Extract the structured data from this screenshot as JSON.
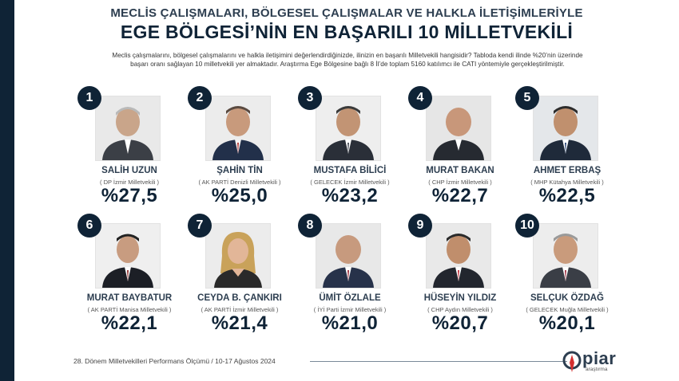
{
  "header": {
    "subtitle": "MECLİS ÇALIŞMALARI, BÖLGESEL ÇALIŞMALAR VE HALKLA İLETİŞİMLERİYLE",
    "title": "EGE BÖLGESİ’NİN EN BAŞARILI 10 MİLLETVEKİLİ",
    "desc_line1": "Meclis çalışmalarını, bölgesel çalışmalarını ve halkla iletişimini değerlendirdiğinizde, ilinizin en başarılı Milletvekili hangisidir? Tabloda kendi ilinde %20’nin üzerinde",
    "desc_line2": "başarı oranı sağlayan 10 milletvekili yer almaktadır. Araştırma Ege Bölgesine bağlı 8 İl’de toplam 5160 katılımcı ile CATI yöntemiyle gerçekleştirilmiştir."
  },
  "deputies": [
    {
      "rank": "1",
      "name": "SALİH UZUN",
      "party": "( DP İzmir Milletvekili )",
      "percent": "%27,5"
    },
    {
      "rank": "2",
      "name": "ŞAHİN TİN",
      "party": "( AK PARTİ Denizli Milletvekili )",
      "percent": "%25,0"
    },
    {
      "rank": "3",
      "name": "MUSTAFA BİLİCİ",
      "party": "( GELECEK İzmir Milletvekili )",
      "percent": "%23,2"
    },
    {
      "rank": "4",
      "name": "MURAT BAKAN",
      "party": "( CHP İzmir Milletvekili )",
      "percent": "%22,7"
    },
    {
      "rank": "5",
      "name": "AHMET ERBAŞ",
      "party": "( MHP Kütahya Milletvekili )",
      "percent": "%22,5"
    },
    {
      "rank": "6",
      "name": "MURAT BAYBATUR",
      "party": "( AK PARTİ Manisa Milletvekili )",
      "percent": "%22,1"
    },
    {
      "rank": "7",
      "name": "CEYDA B. ÇANKIRI",
      "party": "( AK PARTİ İzmir Milletvekili )",
      "percent": "%21,4"
    },
    {
      "rank": "8",
      "name": "ÜMİT ÖZLALE",
      "party": "( İYİ Parti İzmir Milletvekili )",
      "percent": "%21,0"
    },
    {
      "rank": "9",
      "name": "HÜSEYİN YILDIZ",
      "party": "( CHP Aydın Milletvekili )",
      "percent": "%20,7"
    },
    {
      "rank": "10",
      "name": "SELÇUK ÖZDAĞ",
      "party": "( GELECEK Muğla Milletvekili )",
      "percent": "%20,1"
    }
  ],
  "footer": {
    "text": "28. Dönem Milletvekilleri Performans Ölçümü / 10-17 Ağustos 2024",
    "logo_word": "piar",
    "logo_sub": "araştırma"
  },
  "colors": {
    "navy": "#0f2336",
    "accent_red": "#d32f2f"
  }
}
